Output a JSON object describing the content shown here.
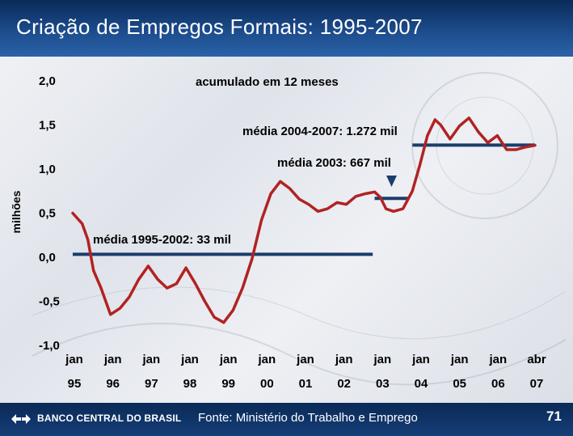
{
  "page": {
    "title": "Criação de Empregos Formais: 1995-2007",
    "bank_name": "BANCO CENTRAL DO BRASIL",
    "source": "Fonte: Ministério do Trabalho e Emprego",
    "page_number": "71"
  },
  "chart_data": {
    "type": "line",
    "subtitle": "acumulado em 12 meses",
    "ylabel": "milhões",
    "ylim": [
      -1.0,
      2.0
    ],
    "y_ticks": [
      "2,0",
      "1,5",
      "1,0",
      "0,5",
      "0,0",
      "-0,5",
      "-1,0"
    ],
    "x_tick_labels": [
      {
        "top": "jan",
        "bottom": "95"
      },
      {
        "top": "jan",
        "bottom": "96"
      },
      {
        "top": "jan",
        "bottom": "97"
      },
      {
        "top": "jan",
        "bottom": "98"
      },
      {
        "top": "jan",
        "bottom": "99"
      },
      {
        "top": "jan",
        "bottom": "00"
      },
      {
        "top": "jan",
        "bottom": "01"
      },
      {
        "top": "jan",
        "bottom": "02"
      },
      {
        "top": "jan",
        "bottom": "03"
      },
      {
        "top": "jan",
        "bottom": "04"
      },
      {
        "top": "jan",
        "bottom": "05"
      },
      {
        "top": "jan",
        "bottom": "06"
      },
      {
        "top": "abr",
        "bottom": "07"
      }
    ],
    "series": [
      {
        "color": "#b22222",
        "x": [
          1995.0,
          1995.25,
          1995.4,
          1995.55,
          1995.75,
          1996.0,
          1996.25,
          1996.5,
          1996.75,
          1997.0,
          1997.25,
          1997.5,
          1997.75,
          1998.0,
          1998.25,
          1998.5,
          1998.75,
          1999.0,
          1999.25,
          1999.5,
          1999.75,
          2000.0,
          2000.25,
          2000.5,
          2000.75,
          2001.0,
          2001.25,
          2001.5,
          2001.75,
          2002.0,
          2002.25,
          2002.5,
          2002.75,
          2003.0,
          2003.15,
          2003.3,
          2003.5,
          2003.75,
          2004.0,
          2004.2,
          2004.4,
          2004.6,
          2004.75,
          2005.0,
          2005.25,
          2005.5,
          2005.75,
          2006.0,
          2006.25,
          2006.5,
          2006.75,
          2007.0,
          2007.25
        ],
        "y": [
          0.5,
          0.38,
          0.2,
          -0.15,
          -0.35,
          -0.65,
          -0.58,
          -0.45,
          -0.25,
          -0.1,
          -0.25,
          -0.35,
          -0.3,
          -0.12,
          -0.3,
          -0.5,
          -0.68,
          -0.74,
          -0.6,
          -0.35,
          -0.02,
          0.42,
          0.72,
          0.86,
          0.78,
          0.66,
          0.6,
          0.52,
          0.55,
          0.62,
          0.6,
          0.69,
          0.72,
          0.74,
          0.68,
          0.55,
          0.52,
          0.55,
          0.75,
          1.05,
          1.38,
          1.56,
          1.5,
          1.34,
          1.49,
          1.58,
          1.42,
          1.3,
          1.38,
          1.22,
          1.22,
          1.25,
          1.27
        ]
      }
    ],
    "reference_lines": [
      {
        "label": "média 1995-2002: 33 mil",
        "value": 0.033,
        "x_start": 1995.0,
        "x_end": 2002.95
      },
      {
        "label": "média 2003: 667 mil",
        "value": 0.667,
        "x_start": 2003.0,
        "x_end": 2003.9
      },
      {
        "label": "média 2004-2007: 1.272 mil",
        "value": 1.272,
        "x_start": 2004.0,
        "x_end": 2007.25
      }
    ]
  }
}
